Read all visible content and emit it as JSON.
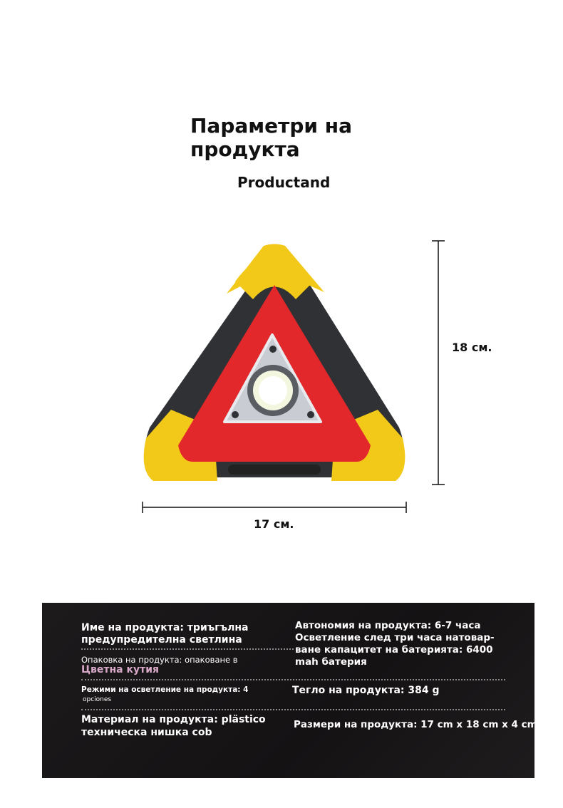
{
  "header": {
    "title": "Параметри на продукта",
    "subtitle": "Productand"
  },
  "dimensions": {
    "height_label": "18 см.",
    "width_label": "17 см."
  },
  "colors": {
    "frame_yellow": "#f2c918",
    "frame_dark": "#2f3134",
    "reflector_red": "#e3282b",
    "panel_bg": "#1a1819",
    "highlight_pink": "#d9a9c9"
  },
  "specs": {
    "name_line1": "Име на продукта: триъгълна",
    "name_line2": "предупредителна светлина",
    "packaging_line1": "Опаковка на продукта: опаковане в",
    "packaging_line2": "Цветна кутия",
    "modes_line1": "Режими на осветление на продукта: 4",
    "modes_line2": "opciones",
    "material_line1": "Материал на продукта: plästico",
    "material_line2": "техническа нишка cob",
    "autonomy_line1": "Автономия на продукта: 6-7 часа",
    "autonomy_line2": "Осветление след три часа натовар-",
    "autonomy_line3": "ване капацитет на батерията: 6400",
    "autonomy_line4": "mah батерия",
    "weight": "Тегло на продукта: 384 g",
    "size": "Размери на продукта: 17 cm x 18 cm x 4 cm"
  }
}
